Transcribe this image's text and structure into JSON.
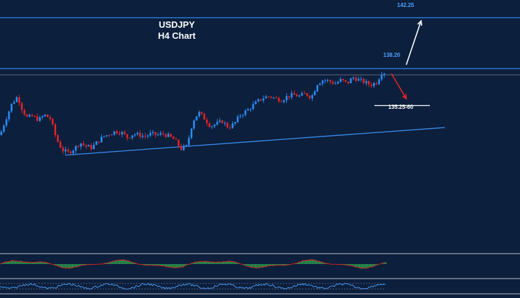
{
  "chart_data": {
    "type": "candlestick",
    "title": "USDJPY",
    "subtitle": "H4 Chart",
    "y_range": [
      128.2,
      143.0
    ],
    "x_range": [
      0,
      130
    ],
    "levels": {
      "resistance_top": {
        "value": 142.25,
        "label": "142.25"
      },
      "resistance": {
        "value": 138.2,
        "label": "138.20"
      },
      "current": {
        "value": 137.7
      },
      "support_zone": {
        "value": 135.25,
        "label": "135.25-60"
      }
    },
    "trendline": {
      "start": {
        "x": 22,
        "y": 131.3
      },
      "end": {
        "x": 150,
        "y": 133.5
      }
    },
    "arrows": {
      "up": {
        "from": {
          "x": 137,
          "y": 138.5
        },
        "to": {
          "x": 142,
          "y": 142.0
        }
      },
      "down": {
        "from": {
          "x": 132,
          "y": 137.8
        },
        "to": {
          "x": 137,
          "y": 135.8
        }
      }
    },
    "price_path": [
      [
        0,
        132.9
      ],
      [
        2,
        134.2
      ],
      [
        4,
        135.4
      ],
      [
        6,
        136.0
      ],
      [
        7,
        135.2
      ],
      [
        9,
        134.3
      ],
      [
        11,
        134.4
      ],
      [
        13,
        134.1
      ],
      [
        15,
        134.5
      ],
      [
        17,
        134.2
      ],
      [
        19,
        132.6
      ],
      [
        21,
        131.7
      ],
      [
        23,
        131.5
      ],
      [
        25,
        131.8
      ],
      [
        27,
        132.3
      ],
      [
        29,
        132.0
      ],
      [
        31,
        131.9
      ],
      [
        33,
        132.4
      ],
      [
        35,
        132.8
      ],
      [
        37,
        133.0
      ],
      [
        39,
        133.2
      ],
      [
        41,
        133.1
      ],
      [
        43,
        132.7
      ],
      [
        45,
        133.0
      ],
      [
        47,
        132.9
      ],
      [
        49,
        132.8
      ],
      [
        51,
        133.0
      ],
      [
        53,
        132.9
      ],
      [
        55,
        133.0
      ],
      [
        57,
        132.8
      ],
      [
        59,
        132.5
      ],
      [
        61,
        131.8
      ],
      [
        63,
        132.0
      ],
      [
        65,
        134.0
      ],
      [
        67,
        134.7
      ],
      [
        69,
        134.2
      ],
      [
        71,
        133.6
      ],
      [
        73,
        133.8
      ],
      [
        75,
        134.0
      ],
      [
        77,
        133.5
      ],
      [
        79,
        133.8
      ],
      [
        81,
        134.5
      ],
      [
        83,
        134.8
      ],
      [
        85,
        135.2
      ],
      [
        87,
        135.6
      ],
      [
        89,
        135.9
      ],
      [
        91,
        136.0
      ],
      [
        93,
        135.8
      ],
      [
        95,
        135.7
      ],
      [
        97,
        136.0
      ],
      [
        99,
        136.1
      ],
      [
        101,
        136.0
      ],
      [
        103,
        136.2
      ],
      [
        105,
        135.9
      ],
      [
        107,
        137.0
      ],
      [
        109,
        137.3
      ],
      [
        111,
        137.2
      ],
      [
        113,
        137.0
      ],
      [
        115,
        137.3
      ],
      [
        117,
        137.0
      ],
      [
        119,
        137.5
      ],
      [
        121,
        137.3
      ],
      [
        123,
        137.1
      ],
      [
        125,
        136.9
      ],
      [
        127,
        137.1
      ],
      [
        129,
        138.0
      ],
      [
        130,
        137.8
      ]
    ],
    "indicators": {
      "histogram": {
        "type": "histogram",
        "range": [
          -1,
          1
        ]
      },
      "oscillator": {
        "type": "line",
        "range": [
          -1,
          1
        ]
      }
    }
  }
}
